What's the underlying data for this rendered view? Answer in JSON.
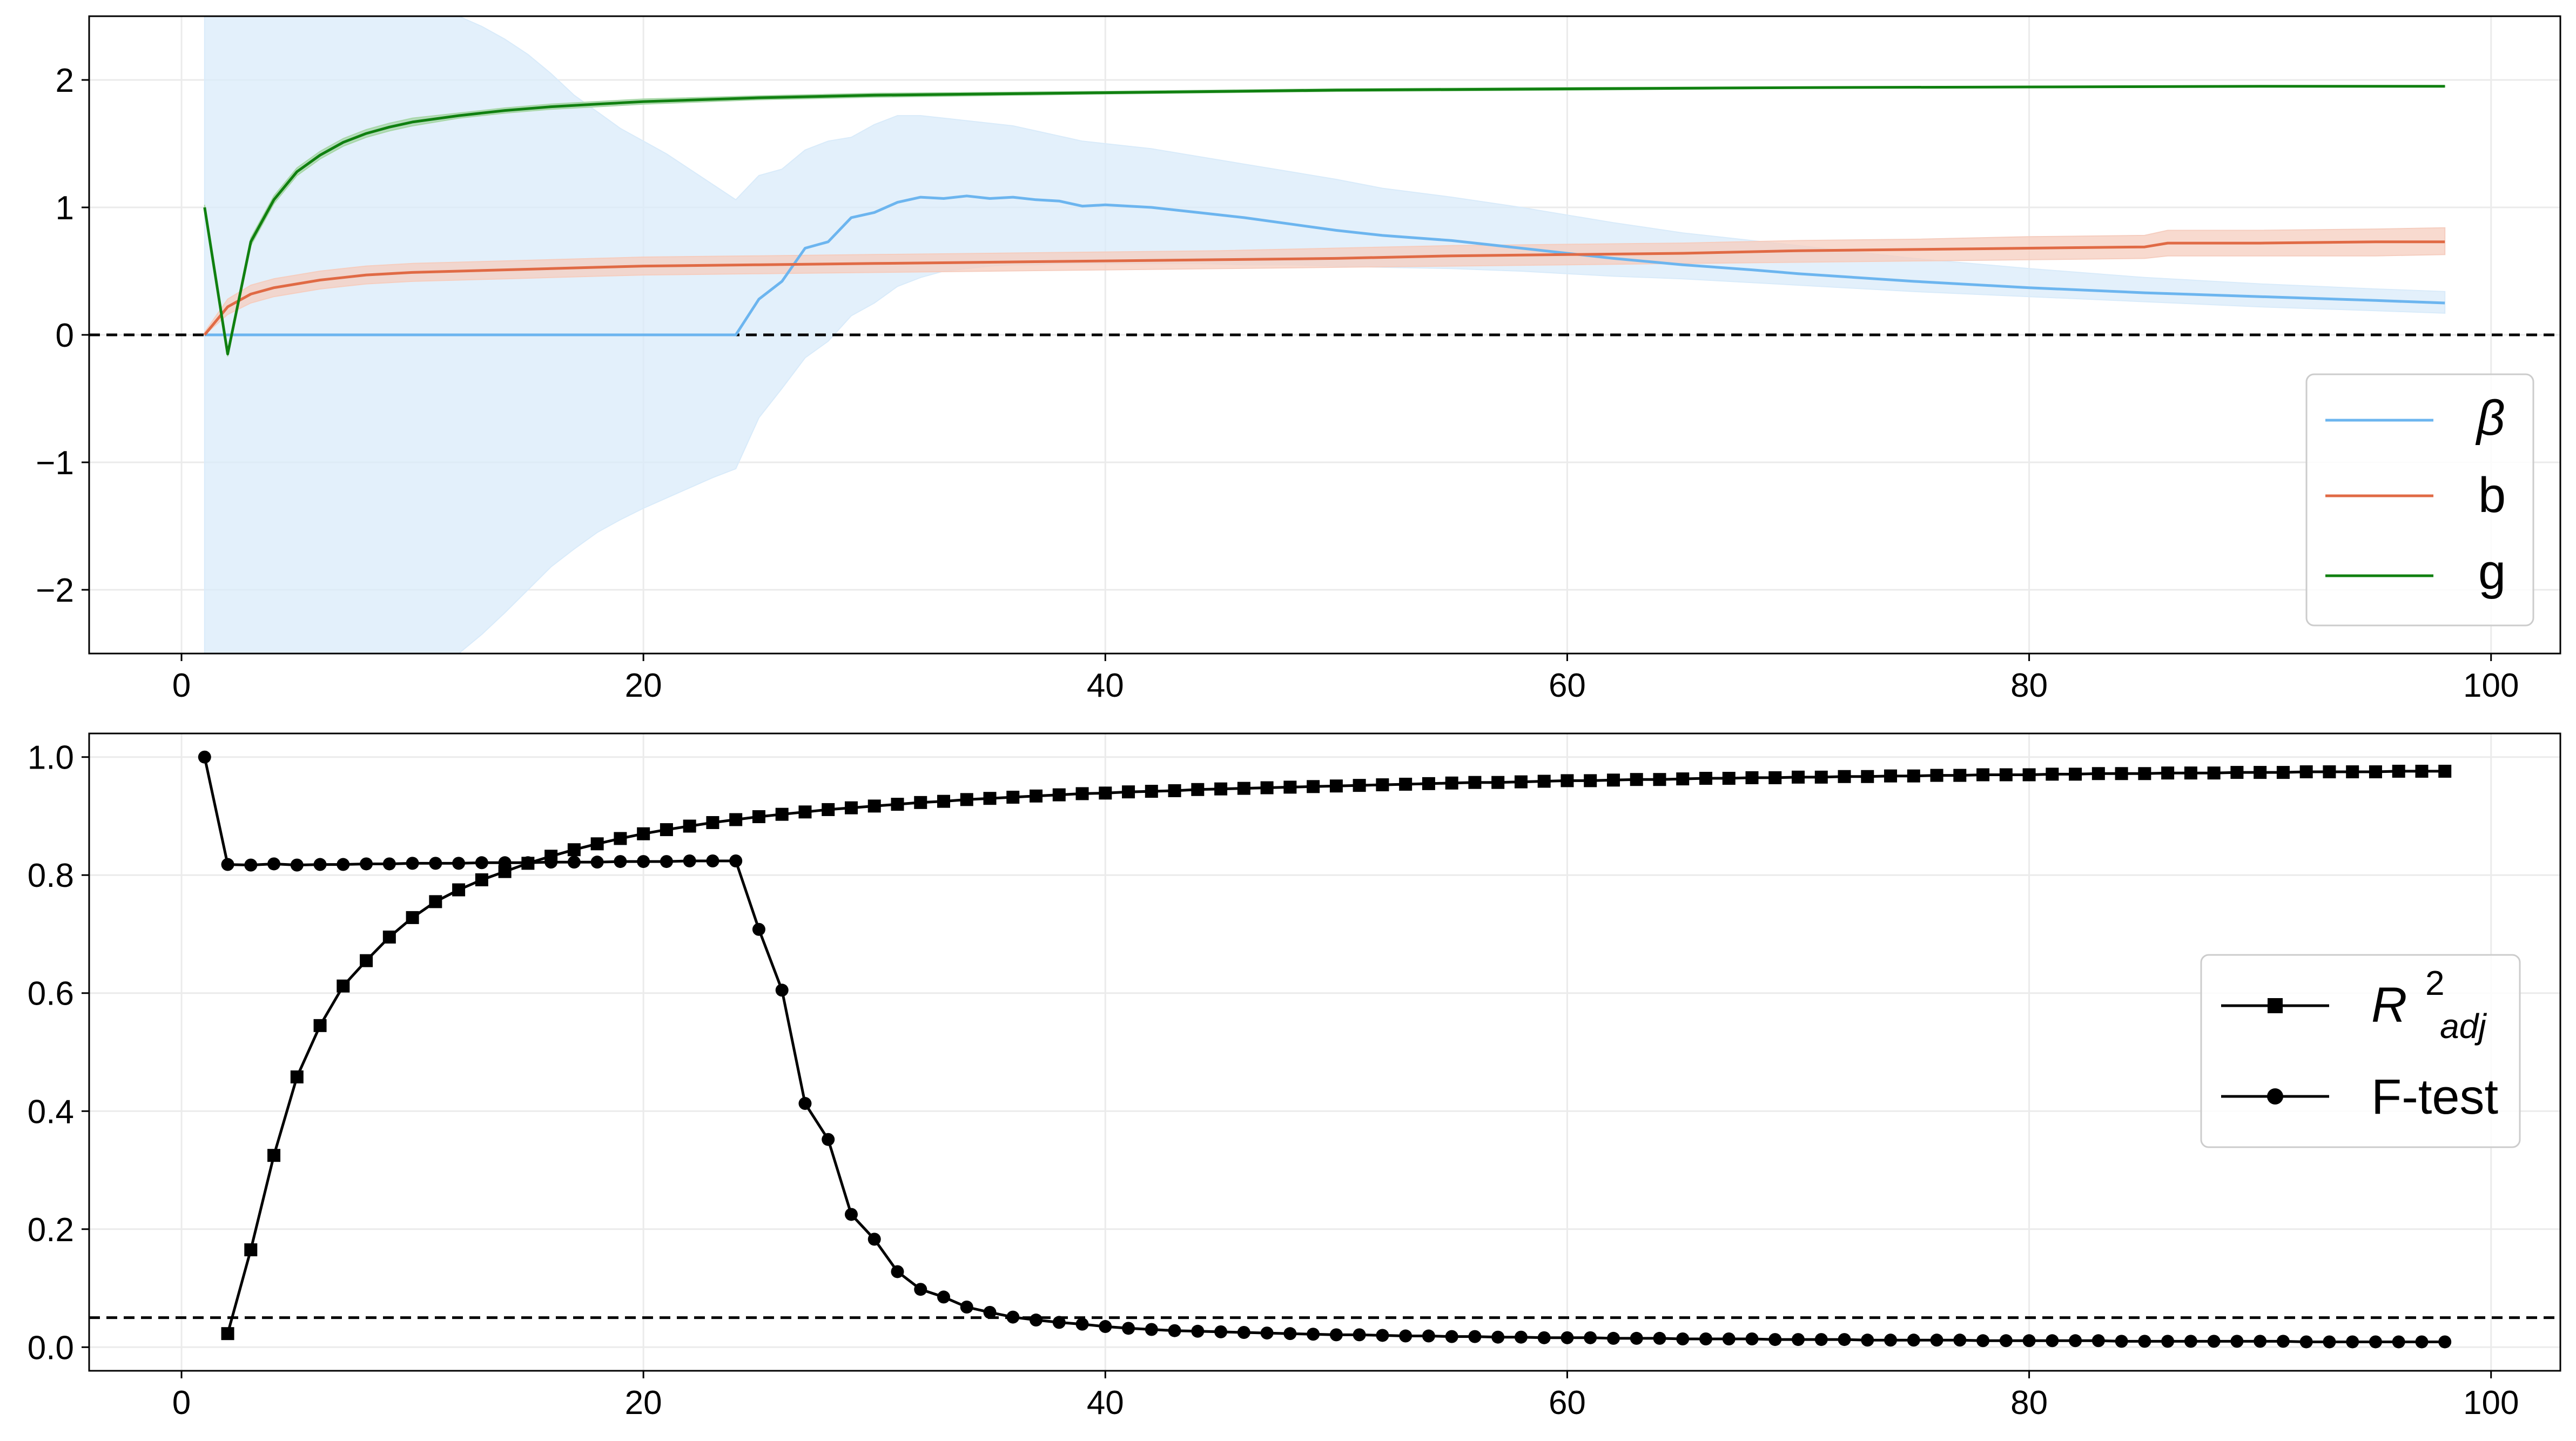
{
  "chart_data": [
    {
      "type": "line",
      "xlim": [
        -4,
        103
      ],
      "ylim": [
        -2.5,
        2.5
      ],
      "xticks": [
        0,
        20,
        40,
        60,
        80,
        100
      ],
      "yticks": [
        -2,
        -1,
        0,
        1,
        2
      ],
      "xtick_labels": [
        "0",
        "20",
        "40",
        "60",
        "80",
        "100"
      ],
      "ytick_labels": [
        "−2",
        "−1",
        "0",
        "1",
        "2"
      ],
      "grid": true,
      "legend_position": "lower-right",
      "reference_line": {
        "y": 0,
        "style": "dashed"
      },
      "series": [
        {
          "name": "β",
          "color": "#6cb5ef",
          "band_color": "#d9ebfa",
          "x": [
            1,
            2,
            3,
            4,
            5,
            6,
            7,
            8,
            9,
            10,
            11,
            12,
            13,
            14,
            15,
            16,
            17,
            18,
            19,
            20,
            21,
            22,
            23,
            24,
            25,
            26,
            27,
            28,
            29,
            30,
            31,
            32,
            33,
            34,
            35,
            36,
            37,
            38,
            39,
            40,
            42,
            44,
            46,
            48,
            50,
            52,
            55,
            58,
            60,
            62,
            65,
            68,
            70,
            75,
            80,
            85,
            90,
            95,
            98
          ],
          "values": [
            0,
            0,
            0,
            0,
            0,
            0,
            0,
            0,
            0,
            0,
            0,
            0,
            0,
            0,
            0,
            0,
            0,
            0,
            0,
            0,
            0,
            0,
            0,
            0,
            0.28,
            0.42,
            0.68,
            0.73,
            0.92,
            0.96,
            1.04,
            1.08,
            1.07,
            1.09,
            1.07,
            1.08,
            1.06,
            1.05,
            1.01,
            1.02,
            1.0,
            0.96,
            0.92,
            0.87,
            0.82,
            0.78,
            0.74,
            0.68,
            0.64,
            0.6,
            0.55,
            0.51,
            0.48,
            0.42,
            0.37,
            0.33,
            0.3,
            0.27,
            0.25
          ],
          "lower": [
            -2.5,
            -2.5,
            -2.5,
            -2.5,
            -2.5,
            -2.5,
            -2.5,
            -2.5,
            -2.5,
            -2.5,
            -2.5,
            -2.5,
            -2.35,
            -2.18,
            -2.0,
            -1.82,
            -1.68,
            -1.55,
            -1.45,
            -1.36,
            -1.28,
            -1.2,
            -1.12,
            -1.05,
            -0.65,
            -0.42,
            -0.18,
            -0.05,
            0.15,
            0.25,
            0.38,
            0.45,
            0.5,
            0.52,
            0.54,
            0.55,
            0.55,
            0.56,
            0.56,
            0.56,
            0.56,
            0.56,
            0.55,
            0.55,
            0.54,
            0.53,
            0.52,
            0.5,
            0.48,
            0.46,
            0.44,
            0.41,
            0.39,
            0.34,
            0.3,
            0.26,
            0.22,
            0.19,
            0.17
          ],
          "upper": [
            2.5,
            2.5,
            2.5,
            2.5,
            2.5,
            2.5,
            2.5,
            2.5,
            2.5,
            2.5,
            2.5,
            2.5,
            2.42,
            2.32,
            2.2,
            2.05,
            1.88,
            1.75,
            1.62,
            1.52,
            1.42,
            1.3,
            1.18,
            1.06,
            1.25,
            1.3,
            1.45,
            1.52,
            1.55,
            1.65,
            1.72,
            1.72,
            1.7,
            1.68,
            1.66,
            1.64,
            1.6,
            1.56,
            1.52,
            1.5,
            1.46,
            1.4,
            1.34,
            1.28,
            1.22,
            1.15,
            1.08,
            1.0,
            0.94,
            0.88,
            0.8,
            0.74,
            0.7,
            0.6,
            0.52,
            0.45,
            0.4,
            0.36,
            0.34
          ]
        },
        {
          "name": "b",
          "color": "#e06a45",
          "band_color": "#f5cdbf",
          "x": [
            1,
            2,
            3,
            4,
            5,
            6,
            7,
            8,
            9,
            10,
            12,
            14,
            16,
            18,
            20,
            25,
            30,
            35,
            40,
            45,
            50,
            55,
            60,
            65,
            70,
            75,
            80,
            85,
            86,
            90,
            95,
            98
          ],
          "values": [
            0,
            0.22,
            0.32,
            0.37,
            0.4,
            0.43,
            0.45,
            0.47,
            0.48,
            0.49,
            0.5,
            0.51,
            0.52,
            0.53,
            0.54,
            0.55,
            0.56,
            0.57,
            0.58,
            0.59,
            0.6,
            0.62,
            0.63,
            0.64,
            0.66,
            0.67,
            0.68,
            0.69,
            0.72,
            0.72,
            0.73,
            0.73
          ],
          "lower": [
            0,
            0.16,
            0.25,
            0.3,
            0.33,
            0.36,
            0.38,
            0.4,
            0.41,
            0.42,
            0.43,
            0.44,
            0.45,
            0.46,
            0.47,
            0.48,
            0.49,
            0.5,
            0.51,
            0.52,
            0.53,
            0.54,
            0.55,
            0.56,
            0.57,
            0.58,
            0.59,
            0.6,
            0.62,
            0.62,
            0.62,
            0.63
          ],
          "upper": [
            0.02,
            0.28,
            0.39,
            0.44,
            0.47,
            0.5,
            0.52,
            0.54,
            0.55,
            0.56,
            0.57,
            0.58,
            0.59,
            0.6,
            0.61,
            0.62,
            0.63,
            0.64,
            0.65,
            0.66,
            0.68,
            0.7,
            0.71,
            0.72,
            0.74,
            0.75,
            0.77,
            0.78,
            0.82,
            0.82,
            0.83,
            0.84
          ]
        },
        {
          "name": "g",
          "color": "#108010",
          "band_color": "#a6d6a6",
          "x": [
            1,
            2,
            3,
            4,
            5,
            6,
            7,
            8,
            9,
            10,
            12,
            14,
            16,
            18,
            20,
            25,
            30,
            40,
            50,
            60,
            70,
            80,
            90,
            98
          ],
          "values": [
            1.0,
            -0.15,
            0.73,
            1.06,
            1.28,
            1.41,
            1.51,
            1.58,
            1.63,
            1.67,
            1.72,
            1.76,
            1.79,
            1.81,
            1.83,
            1.86,
            1.88,
            1.9,
            1.92,
            1.93,
            1.94,
            1.945,
            1.95,
            1.95
          ],
          "lower": [
            0.98,
            -0.17,
            0.7,
            1.03,
            1.25,
            1.38,
            1.48,
            1.55,
            1.6,
            1.64,
            1.7,
            1.74,
            1.77,
            1.79,
            1.81,
            1.845,
            1.865,
            1.89,
            1.91,
            1.92,
            1.935,
            1.94,
            1.945,
            1.945
          ],
          "upper": [
            1.02,
            -0.13,
            0.76,
            1.09,
            1.31,
            1.44,
            1.54,
            1.61,
            1.66,
            1.7,
            1.74,
            1.78,
            1.81,
            1.83,
            1.85,
            1.875,
            1.895,
            1.91,
            1.93,
            1.94,
            1.945,
            1.95,
            1.955,
            1.955
          ]
        }
      ]
    },
    {
      "type": "line",
      "xlim": [
        -4,
        103
      ],
      "ylim": [
        -0.04,
        1.04
      ],
      "xticks": [
        0,
        20,
        40,
        60,
        80,
        100
      ],
      "yticks": [
        0.0,
        0.2,
        0.4,
        0.6,
        0.8,
        1.0
      ],
      "xtick_labels": [
        "0",
        "20",
        "40",
        "60",
        "80",
        "100"
      ],
      "ytick_labels": [
        "0.0",
        "0.2",
        "0.4",
        "0.6",
        "0.8",
        "1.0"
      ],
      "grid": true,
      "legend_position": "center-right",
      "reference_line": {
        "y": 0.05,
        "style": "dashed"
      },
      "series": [
        {
          "name": "R²adj",
          "marker": "square",
          "color": "#000000",
          "x_start": 2,
          "values": [
            0.023,
            0.165,
            0.325,
            0.458,
            0.545,
            0.612,
            0.655,
            0.695,
            0.728,
            0.755,
            0.775,
            0.792,
            0.806,
            0.82,
            0.832,
            0.843,
            0.853,
            0.862,
            0.87,
            0.877,
            0.883,
            0.889,
            0.894,
            0.899,
            0.903,
            0.907,
            0.911,
            0.914,
            0.917,
            0.92,
            0.923,
            0.925,
            0.928,
            0.93,
            0.932,
            0.934,
            0.936,
            0.938,
            0.939,
            0.941,
            0.942,
            0.943,
            0.945,
            0.946,
            0.947,
            0.948,
            0.949,
            0.95,
            0.951,
            0.952,
            0.953,
            0.954,
            0.955,
            0.956,
            0.957,
            0.957,
            0.958,
            0.959,
            0.96,
            0.96,
            0.961,
            0.962,
            0.962,
            0.963,
            0.964,
            0.964,
            0.965,
            0.965,
            0.966,
            0.966,
            0.967,
            0.967,
            0.968,
            0.968,
            0.969,
            0.969,
            0.97,
            0.97,
            0.97,
            0.971,
            0.971,
            0.972,
            0.972,
            0.972,
            0.973,
            0.973,
            0.973,
            0.974,
            0.974,
            0.974,
            0.975,
            0.975,
            0.975,
            0.975,
            0.976,
            0.976,
            0.976
          ]
        },
        {
          "name": "F-test",
          "marker": "circle",
          "color": "#000000",
          "x_start": 1,
          "values": [
            1.0,
            0.818,
            0.817,
            0.819,
            0.817,
            0.818,
            0.818,
            0.819,
            0.819,
            0.82,
            0.82,
            0.82,
            0.821,
            0.821,
            0.821,
            0.822,
            0.822,
            0.822,
            0.823,
            0.823,
            0.823,
            0.824,
            0.824,
            0.824,
            0.708,
            0.605,
            0.413,
            0.352,
            0.225,
            0.183,
            0.128,
            0.098,
            0.085,
            0.068,
            0.059,
            0.051,
            0.046,
            0.042,
            0.039,
            0.035,
            0.032,
            0.03,
            0.028,
            0.027,
            0.026,
            0.025,
            0.024,
            0.023,
            0.022,
            0.021,
            0.021,
            0.02,
            0.019,
            0.019,
            0.018,
            0.018,
            0.017,
            0.017,
            0.016,
            0.016,
            0.016,
            0.015,
            0.015,
            0.015,
            0.014,
            0.014,
            0.014,
            0.014,
            0.013,
            0.013,
            0.013,
            0.013,
            0.012,
            0.012,
            0.012,
            0.012,
            0.012,
            0.011,
            0.011,
            0.011,
            0.011,
            0.011,
            0.011,
            0.01,
            0.01,
            0.01,
            0.01,
            0.01,
            0.01,
            0.01,
            0.01,
            0.009,
            0.009,
            0.009,
            0.009,
            0.009,
            0.009,
            0.009
          ]
        }
      ]
    }
  ],
  "legend_top": {
    "items": [
      "β",
      "b",
      "g"
    ]
  },
  "legend_bottom": {
    "r_main": "R",
    "r_sup": "2",
    "r_sub": "adj",
    "ftest": "F-test"
  }
}
